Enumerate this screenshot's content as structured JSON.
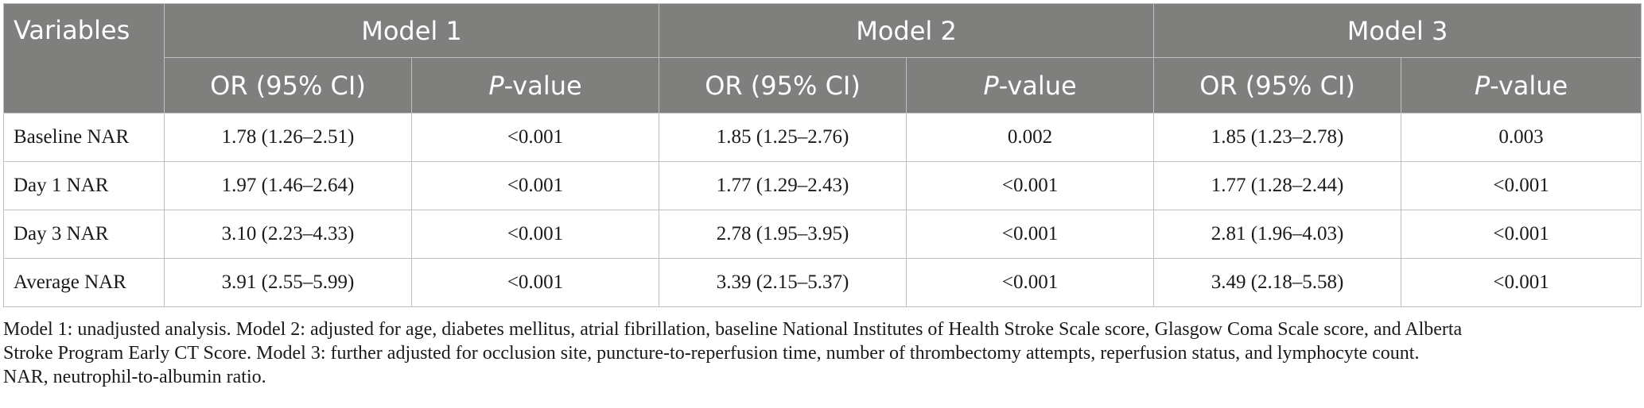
{
  "header": {
    "variables": "Variables",
    "models": [
      "Model 1",
      "Model 2",
      "Model 3"
    ],
    "sub": {
      "or": "OR (95% CI)",
      "p_italic": "P",
      "p_rest": "-value"
    }
  },
  "rows": [
    {
      "label": "Baseline NAR",
      "m1_or": "1.78 (1.26–2.51)",
      "m1_p": "<0.001",
      "m2_or": "1.85 (1.25–2.76)",
      "m2_p": "0.002",
      "m3_or": "1.85 (1.23–2.78)",
      "m3_p": "0.003"
    },
    {
      "label": "Day 1 NAR",
      "m1_or": "1.97 (1.46–2.64)",
      "m1_p": "<0.001",
      "m2_or": "1.77 (1.29–2.43)",
      "m2_p": "<0.001",
      "m3_or": "1.77 (1.28–2.44)",
      "m3_p": "<0.001"
    },
    {
      "label": "Day 3 NAR",
      "m1_or": "3.10 (2.23–4.33)",
      "m1_p": "<0.001",
      "m2_or": "2.78 (1.95–3.95)",
      "m2_p": "<0.001",
      "m3_or": "2.81 (1.96–4.03)",
      "m3_p": "<0.001"
    },
    {
      "label": "Average NAR",
      "m1_or": "3.91 (2.55–5.99)",
      "m1_p": "<0.001",
      "m2_or": "3.39 (2.15–5.37)",
      "m2_p": "<0.001",
      "m3_or": "3.49 (2.18–5.58)",
      "m3_p": "<0.001"
    }
  ],
  "footnote": {
    "line1": "Model 1: unadjusted analysis. Model 2: adjusted for age, diabetes mellitus, atrial fibrillation, baseline National Institutes of Health Stroke Scale score, Glasgow Coma Scale score, and Alberta",
    "line2": "Stroke Program Early CT Score. Model 3: further adjusted for occlusion site, puncture-to-reperfusion time, number of thrombectomy attempts, reperfusion status, and lymphocyte count.",
    "line3": "NAR, neutrophil-to-albumin ratio."
  },
  "colors": {
    "header_bg": "#7f7f7e",
    "header_text": "#ffffff",
    "border": "#bfbfbf"
  }
}
